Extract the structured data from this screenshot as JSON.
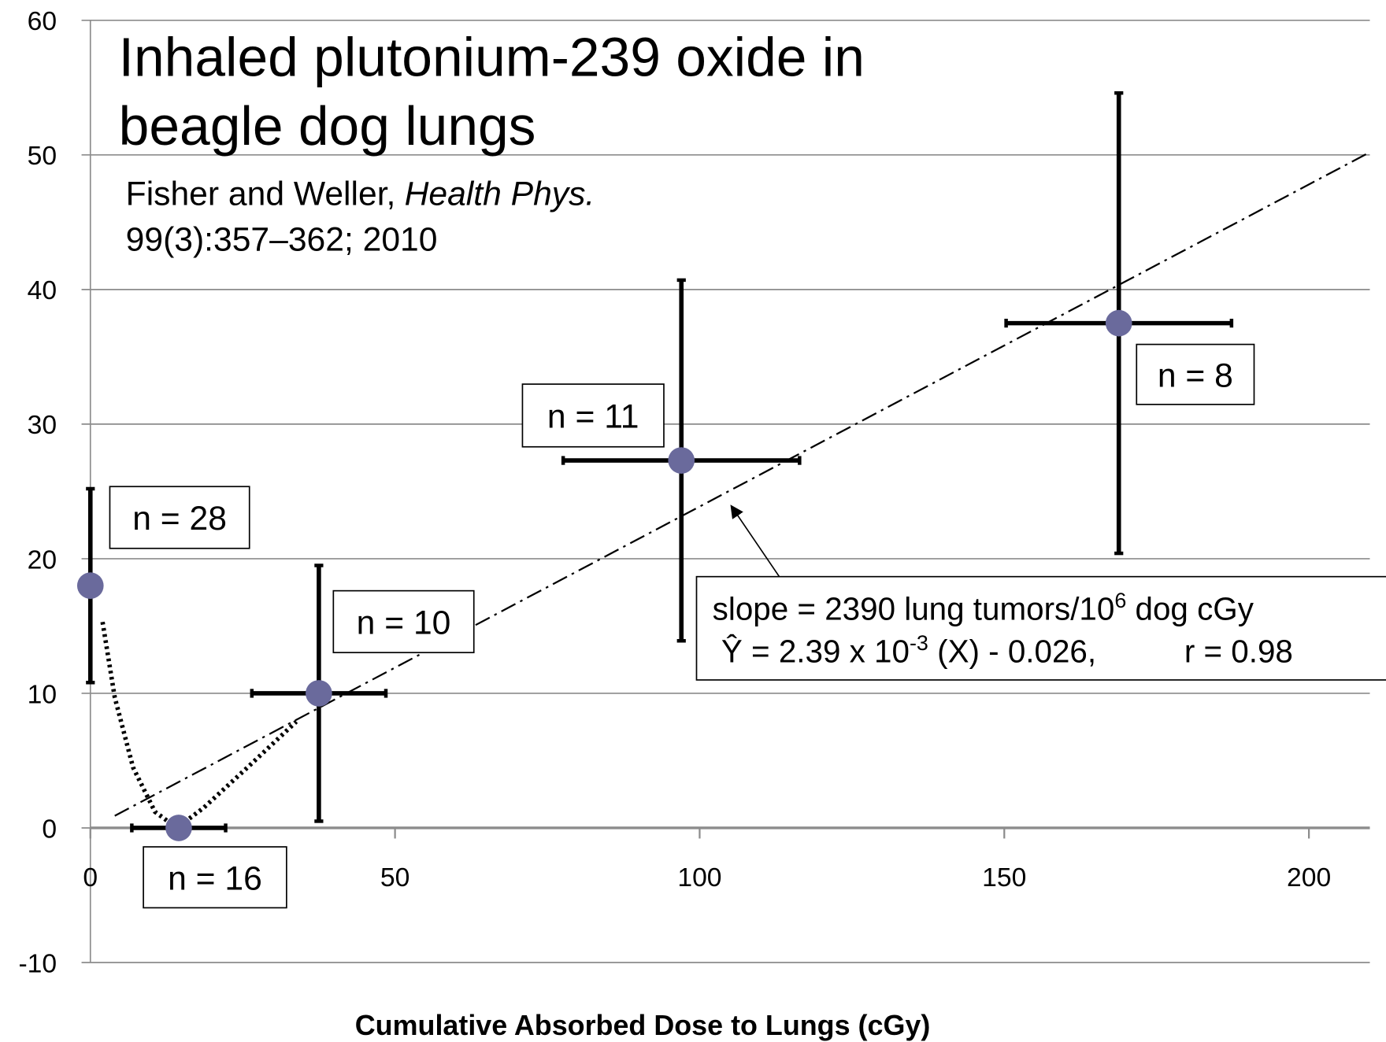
{
  "chart_data": {
    "type": "scatter",
    "title": [
      "Inhaled plutonium-239 oxide in",
      "beagle dog lungs"
    ],
    "citation": {
      "authors": "Fisher and Weller,",
      "journal": "Health Phys.",
      "ref": "99(3):357–362; 2010"
    },
    "x_label": "Cumulative Absorbed Dose to Lungs (cGy)",
    "xlim": [
      0,
      210
    ],
    "ylim": [
      -10,
      60
    ],
    "xticks": [
      0,
      50,
      100,
      150,
      200
    ],
    "yticks": [
      -10,
      0,
      10,
      20,
      30,
      40,
      50,
      60
    ],
    "grid": true,
    "series": [
      {
        "color": "#6a6a9c",
        "x": [
          0,
          14.5,
          37.5,
          97,
          168.8
        ],
        "y": [
          18,
          0,
          10,
          27.3,
          37.5
        ],
        "xerr": [
          null,
          7.7,
          11,
          19.4,
          18.5
        ],
        "yerr": [
          7.2,
          null,
          9.5,
          13.4,
          17.1
        ],
        "labels": [
          "n = 28",
          "n = 16",
          "n = 10",
          "n = 11",
          "n = 8"
        ]
      }
    ],
    "fit": {
      "x": [
        4,
        210
      ],
      "y": [
        0.9,
        50.2
      ]
    },
    "curve": {
      "x": [
        2,
        4,
        7,
        10.6,
        14.2,
        18.6,
        25.8,
        33.8
      ],
      "y": [
        15.3,
        9.7,
        4.5,
        1.2,
        0,
        1.5,
        4.5,
        7.9
      ]
    },
    "annotation": {
      "slope": [
        "slope = 2390 lung tumors/10",
        "6",
        " dog cGy"
      ],
      "equation": [
        "Ŷ = 2.39 x 10",
        "-3",
        " (X) - 0.026,",
        "r = 0.98"
      ]
    }
  }
}
